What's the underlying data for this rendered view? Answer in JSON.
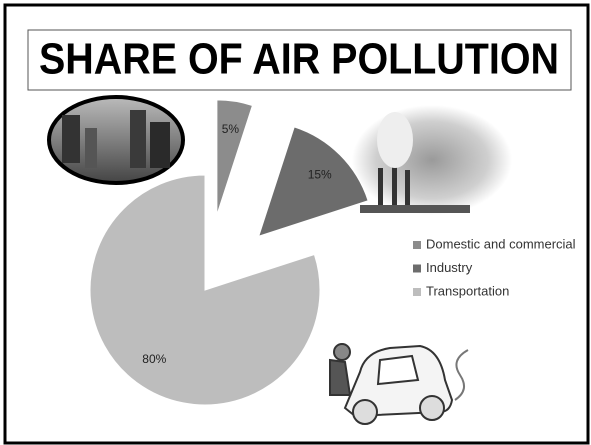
{
  "chart_data": {
    "type": "pie",
    "title": "SHARE OF AIR POLLUTION",
    "categories": [
      "Domestic and commercial",
      "Industry",
      "Transportation"
    ],
    "values": [
      5,
      15,
      80
    ],
    "value_labels": [
      "5%",
      "15%",
      "80%"
    ],
    "colors": [
      "#8c8c8c",
      "#6c6c6c",
      "#bdbdbd"
    ],
    "exploded": [
      true,
      true,
      false
    ],
    "legend": "right"
  }
}
